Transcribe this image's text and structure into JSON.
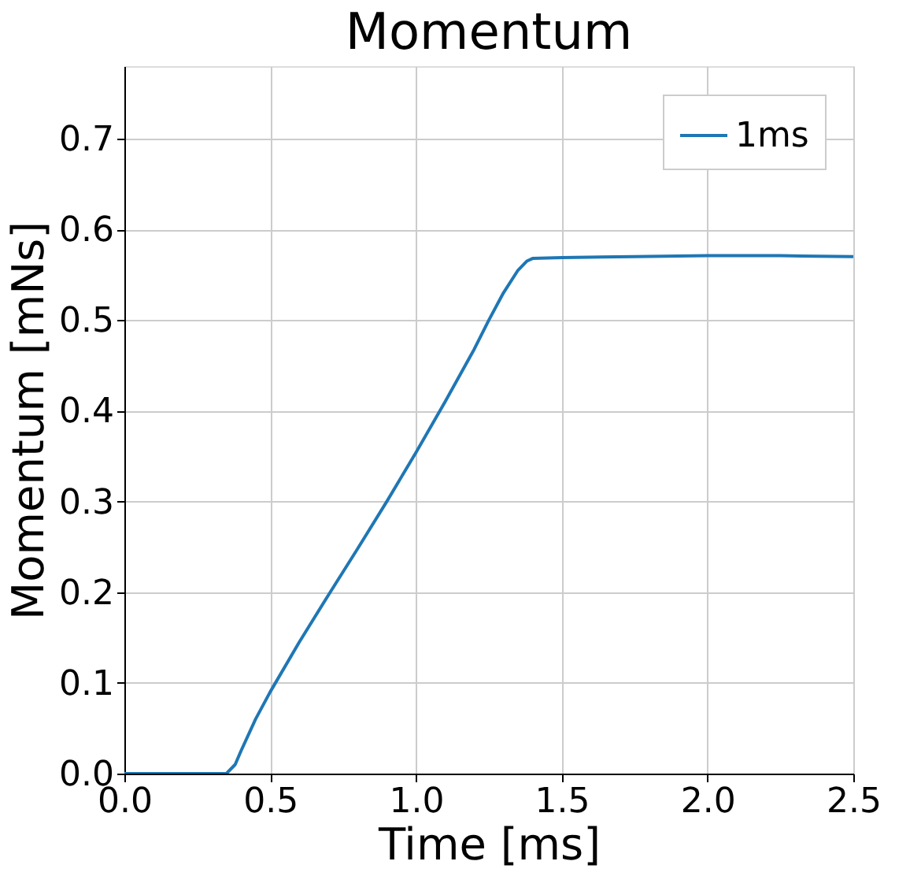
{
  "chart_data": {
    "type": "line",
    "title": "Momentum",
    "xlabel": "Time [ms]",
    "ylabel": "Momentum [mNs]",
    "xlim": [
      0,
      2.5
    ],
    "ylim": [
      0,
      0.78
    ],
    "xticks": [
      {
        "value": 0,
        "label": "0.0"
      },
      0.5,
      {
        "value": 1,
        "label": "1.0"
      },
      1.5,
      {
        "value": 2,
        "label": "2.0"
      },
      2.5
    ],
    "yticks": [
      {
        "value": 0,
        "label": "0.0"
      },
      0.1,
      0.2,
      0.3,
      0.4,
      0.5,
      0.6,
      0.7
    ],
    "grid": true,
    "legend": "top right",
    "line_style": "solid",
    "marker": "none",
    "series": [
      {
        "name": "1ms",
        "color": "#1f77b4",
        "x": [
          0,
          0.1,
          0.2,
          0.3,
          0.35,
          0.38,
          0.4,
          0.45,
          0.5,
          0.6,
          0.7,
          0.8,
          0.9,
          1.0,
          1.1,
          1.2,
          1.25,
          1.3,
          1.35,
          1.38,
          1.4,
          1.5,
          1.75,
          2.0,
          2.25,
          2.5
        ],
        "values": [
          0,
          0,
          0,
          0,
          0,
          0.01,
          0.025,
          0.06,
          0.09,
          0.145,
          0.197,
          0.248,
          0.3,
          0.354,
          0.41,
          0.468,
          0.5,
          0.53,
          0.555,
          0.565,
          0.568,
          0.569,
          0.57,
          0.571,
          0.571,
          0.57
        ]
      }
    ]
  }
}
